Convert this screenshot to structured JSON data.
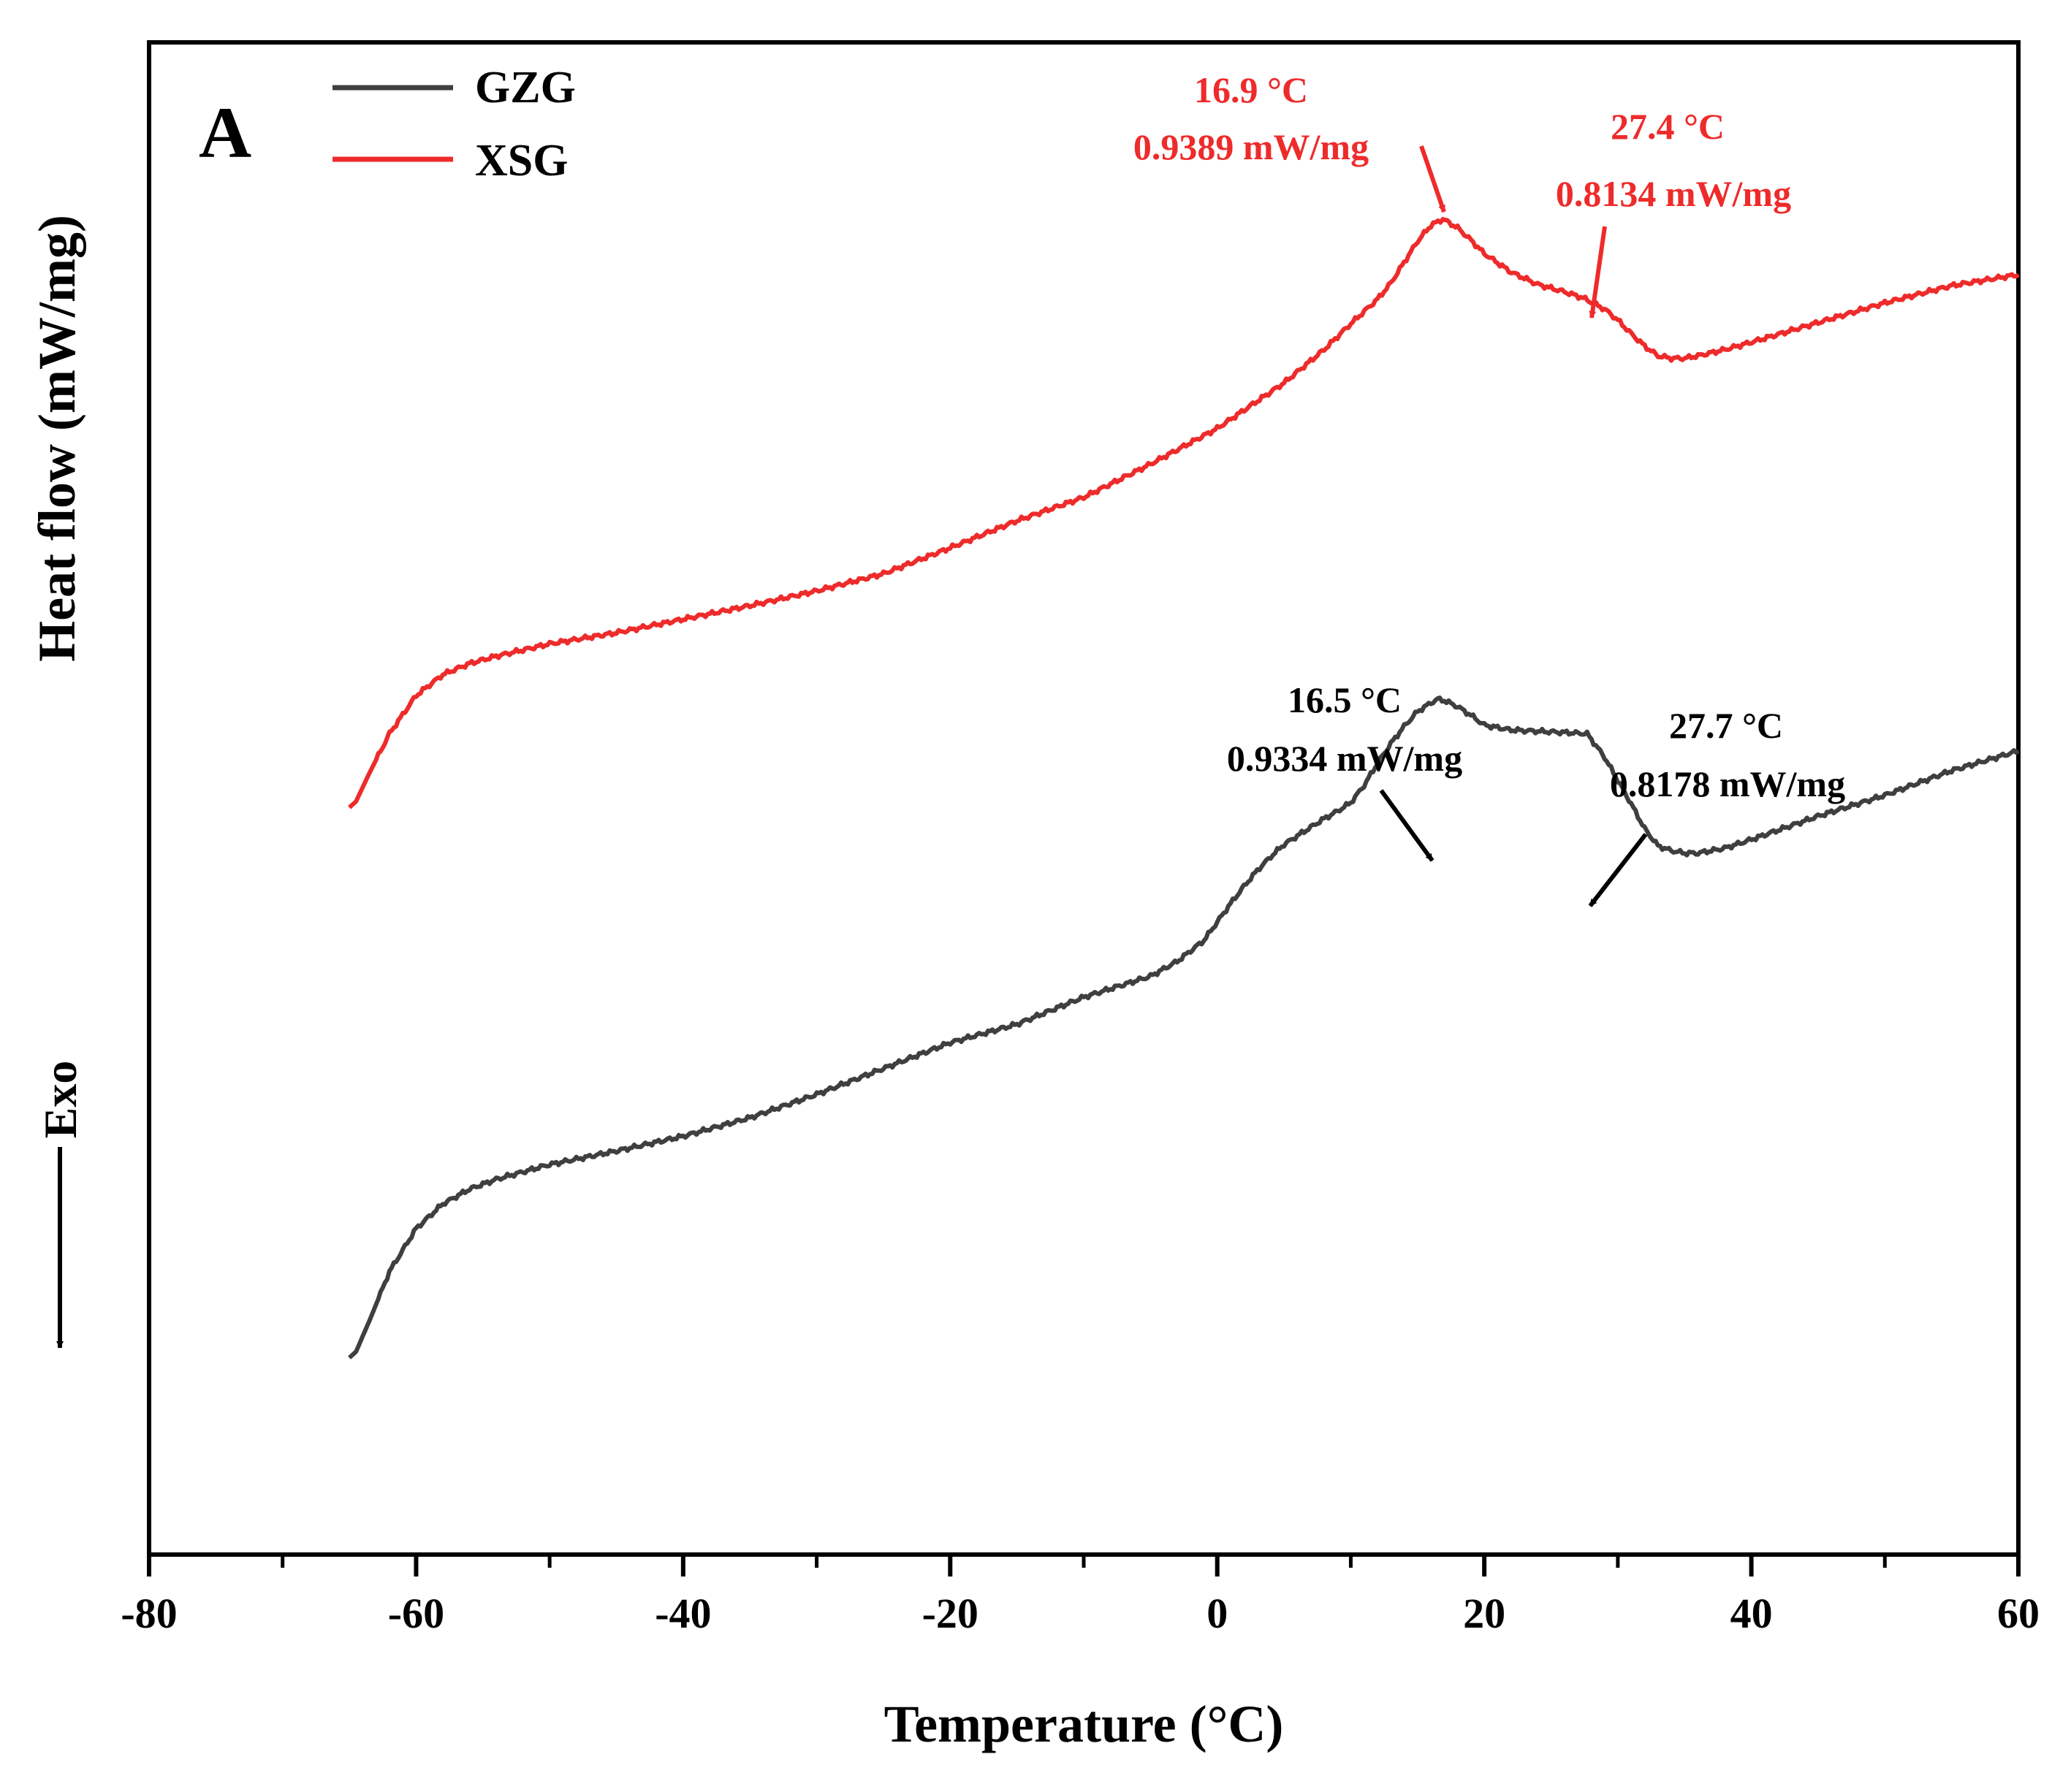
{
  "chart_data": {
    "type": "line",
    "panel_label": "A",
    "xlabel": "Temperature (°C)",
    "ylabel": "Heat flow (mW/mg)",
    "exo_label": "Exo",
    "xlim": [
      -80,
      60
    ],
    "xticks": [
      -80,
      -60,
      -40,
      -20,
      0,
      20,
      40,
      60
    ],
    "ylim": [
      0,
      100
    ],
    "yticks_shown": false,
    "legend_position": "top-left",
    "colors": {
      "GZG": "#3f3f3f",
      "XSG": "#ee2b2b",
      "axis": "#000000"
    },
    "series": [
      {
        "name": "GZG",
        "x": [
          -65,
          -64.5,
          -63.5,
          -62,
          -60,
          -58,
          -56,
          -54,
          -52,
          -50,
          -45,
          -40,
          -35,
          -30,
          -25,
          -20,
          -15,
          -10,
          -5,
          -3,
          -1,
          0,
          1,
          2,
          3,
          4,
          5,
          6,
          7,
          8,
          9,
          10,
          11,
          12,
          13,
          14,
          15,
          16,
          16.5,
          17,
          18,
          19,
          20,
          22,
          24,
          26,
          27.7,
          29,
          30,
          31,
          32,
          33,
          34,
          35,
          36,
          38,
          40,
          45,
          50,
          55,
          60
        ],
        "y": [
          7.5,
          8.0,
          10.5,
          14.5,
          18.0,
          20.0,
          21.2,
          22.0,
          22.6,
          23.2,
          24.3,
          25.5,
          27.0,
          28.9,
          31.0,
          33.1,
          34.6,
          36.8,
          38.5,
          39.7,
          41.4,
          42.9,
          44.4,
          45.8,
          47.1,
          48.2,
          49.2,
          49.9,
          50.6,
          51.3,
          51.9,
          52.6,
          54.0,
          55.8,
          57.4,
          58.8,
          60.0,
          60.7,
          61.0,
          60.9,
          60.4,
          59.7,
          58.9,
          58.5,
          58.4,
          58.3,
          58.2,
          56.3,
          54.4,
          52.5,
          50.5,
          49.1,
          48.7,
          48.5,
          48.5,
          48.9,
          49.6,
          51.5,
          53.2,
          55.2,
          56.8
        ]
      },
      {
        "name": "XSG",
        "x": [
          -65,
          -64.5,
          -63.5,
          -62,
          -60,
          -58,
          -56,
          -54,
          -52,
          -50,
          -45,
          -40,
          -35,
          -30,
          -25,
          -20,
          -15,
          -10,
          -5,
          0,
          5,
          8,
          10,
          12,
          13,
          14,
          15,
          16,
          16.9,
          18,
          19,
          20,
          22,
          24,
          26,
          27.4,
          29,
          30,
          31,
          32,
          33,
          34,
          35,
          36,
          38,
          40,
          45,
          50,
          55,
          60
        ],
        "y": [
          52.2,
          52.7,
          55.0,
          58.2,
          61.3,
          63.0,
          63.9,
          64.5,
          65.0,
          65.5,
          66.4,
          67.5,
          68.6,
          69.8,
          71.2,
          73.3,
          75.5,
          77.4,
          80.1,
          83.0,
          86.7,
          89.4,
          91.5,
          93.5,
          94.8,
          96.5,
          98.2,
          99.5,
          100.0,
          99.3,
          98.3,
          97.2,
          95.7,
          94.7,
          94.1,
          93.6,
          92.7,
          91.8,
          90.7,
          89.7,
          88.9,
          88.7,
          88.7,
          88.9,
          89.4,
          90.0,
          91.6,
          93.2,
          94.6,
          95.5
        ]
      }
    ],
    "annotations": [
      {
        "series": "XSG",
        "x": 16.9,
        "y": 100.0,
        "line1": "16.9 °C",
        "line2": "0.9389 mW/mg"
      },
      {
        "series": "XSG",
        "x": 27.4,
        "y": 93.6,
        "line1": "27.4 °C",
        "line2": "0.8134 mW/mg"
      },
      {
        "series": "GZG",
        "x": 16.5,
        "y": 61.0,
        "line1": "16.5 °C",
        "line2": "0.9334 mW/mg"
      },
      {
        "series": "GZG",
        "x": 27.7,
        "y": 58.2,
        "line1": "27.7 °C",
        "line2": "0.8178 mW/mg"
      }
    ]
  }
}
